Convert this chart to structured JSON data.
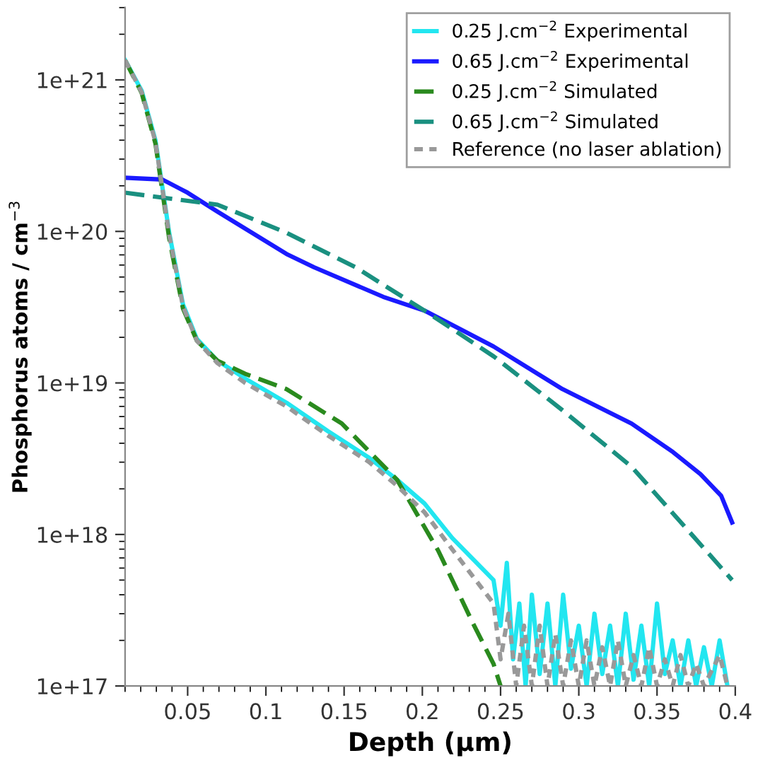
{
  "chart_data": {
    "type": "line",
    "xlabel": "Depth (µm)",
    "ylabel": "Phosphorus atoms / cm$^{−3}$",
    "log": "y",
    "grid": false,
    "legend": "top right",
    "xlim": [
      0.01,
      0.4
    ],
    "xticks": [
      0.05,
      0.1,
      0.15,
      0.2,
      0.25,
      0.3,
      0.35,
      0.4
    ],
    "ylim": [
      1e+17,
      3e+21
    ],
    "yticks": [
      {
        "value": 1e+17,
        "label": "1e+17"
      },
      {
        "value": 1e+18,
        "label": "1e+18"
      },
      {
        "value": 1e+19,
        "label": "1e+19"
      },
      {
        "value": 1e+20,
        "label": "1e+20"
      },
      {
        "value": 1e+21,
        "label": "1e+21"
      }
    ],
    "series": [
      {
        "name": "0.25 J.cm$^{−2}$ Experimental",
        "color": "#22e6f0",
        "line_style": "solid",
        "x": [
          0.01,
          0.0206,
          0.0294,
          0.0382,
          0.047,
          0.0559,
          0.0691,
          0.0867,
          0.1132,
          0.1397,
          0.1661,
          0.1838,
          0.2014,
          0.219,
          0.2455,
          0.25,
          0.254,
          0.258,
          0.262,
          0.266,
          0.27,
          0.275,
          0.28,
          0.285,
          0.29,
          0.295,
          0.3,
          0.305,
          0.31,
          0.315,
          0.32,
          0.325,
          0.33,
          0.335,
          0.34,
          0.345,
          0.35,
          0.355,
          0.36,
          0.365,
          0.37,
          0.375,
          0.38,
          0.385,
          0.39,
          0.395
        ],
        "values": [
          1.35e+21,
          8.5e+20,
          4e+20,
          9.8e+19,
          3.3e+19,
          1.95e+19,
          1.4e+19,
          1.07e+19,
          7.4e+18,
          4.8e+18,
          3.2e+18,
          2.3e+18,
          1.6e+18,
          9.5e+17,
          5e+17,
          2.5e+17,
          6.5e+17,
          1.5e+17,
          3.5e+17,
          1e+17,
          4e+17,
          1.2e+17,
          3.5e+17,
          1e+17,
          4e+17,
          1.3e+17,
          2.5e+17,
          1e+17,
          3e+17,
          1.2e+17,
          2.5e+17,
          1e+17,
          3e+17,
          1.1e+17,
          2.5e+17,
          1e+17,
          3.5e+17,
          1.2e+17,
          2e+17,
          1e+17,
          2e+17,
          1e+17,
          1.8e+17,
          1e+17,
          2e+17,
          1e+17
        ]
      },
      {
        "name": "0.65 J.cm$^{−2}$ Experimental",
        "color": "#1a1aff",
        "line_style": "solid",
        "x": [
          0.01,
          0.0338,
          0.05,
          0.0691,
          0.1132,
          0.1308,
          0.175,
          0.2014,
          0.2455,
          0.2896,
          0.3337,
          0.3602,
          0.3778,
          0.391,
          0.398
        ],
        "values": [
          2.26e+20,
          2.2e+20,
          1.8e+20,
          1.35e+20,
          7.1e+19,
          5.8e+19,
          3.7e+19,
          3e+19,
          1.74e+19,
          9.1e+18,
          5.4e+18,
          3.5e+18,
          2.5e+18,
          1.8e+18,
          1.2e+18
        ]
      },
      {
        "name": "0.25 J.cm$^{−2}$ Simulated",
        "color": "#2a8a1e",
        "line_style": "dashed",
        "x": [
          0.01,
          0.0206,
          0.0294,
          0.0382,
          0.047,
          0.0559,
          0.0691,
          0.0867,
          0.1132,
          0.1485,
          0.1838,
          0.2102,
          0.2323,
          0.2455,
          0.25
        ],
        "values": [
          1.35e+21,
          8.2e+20,
          3.8e+20,
          9e+19,
          3.1e+19,
          1.9e+19,
          1.4e+19,
          1.15e+19,
          9.1e+18,
          5.4e+18,
          2.3e+18,
          7.8e+17,
          2.6e+17,
          1.4e+17,
          1e+17
        ]
      },
      {
        "name": "0.65 J.cm$^{−2}$ Simulated",
        "color": "#1a9080",
        "line_style": "dashed",
        "x": [
          0.01,
          0.0691,
          0.1132,
          0.1573,
          0.2014,
          0.2455,
          0.2896,
          0.3337,
          0.398
        ],
        "values": [
          1.8e+20,
          1.5e+20,
          9.8e+19,
          5.8e+19,
          3e+19,
          1.5e+19,
          6.6e+18,
          2.8e+18,
          5e+17
        ]
      },
      {
        "name": "Reference (no laser ablation)",
        "color": "#999999",
        "line_style": "dotted",
        "x": [
          0.01,
          0.0206,
          0.0294,
          0.0382,
          0.047,
          0.0559,
          0.0691,
          0.0867,
          0.1132,
          0.1397,
          0.1661,
          0.1838,
          0.2014,
          0.219,
          0.2455,
          0.25,
          0.255,
          0.26,
          0.265,
          0.27,
          0.275,
          0.28,
          0.285,
          0.29,
          0.295,
          0.3,
          0.305,
          0.31,
          0.315,
          0.32,
          0.325,
          0.33,
          0.335,
          0.34,
          0.345,
          0.35,
          0.355,
          0.36,
          0.365,
          0.37,
          0.375,
          0.38,
          0.39,
          0.395
        ],
        "values": [
          1.35e+21,
          8.3e+20,
          3.9e+20,
          9.5e+19,
          3.2e+19,
          1.9e+19,
          1.35e+19,
          1e+19,
          7e+18,
          4.5e+18,
          3e+18,
          2.1e+18,
          1.4e+18,
          8e+17,
          3.5e+17,
          1.5e+17,
          3e+17,
          1e+17,
          2.5e+17,
          1e+17,
          2.5e+17,
          1e+17,
          2.2e+17,
          1e+17,
          2e+17,
          1e+17,
          2e+17,
          1e+17,
          1.8e+17,
          1e+17,
          2e+17,
          1e+17,
          1.6e+17,
          1e+17,
          1.8e+17,
          1e+17,
          1.5e+17,
          1e+17,
          1.6e+17,
          1e+17,
          1.4e+17,
          1e+17,
          1.6e+17,
          1e+17
        ]
      }
    ]
  }
}
